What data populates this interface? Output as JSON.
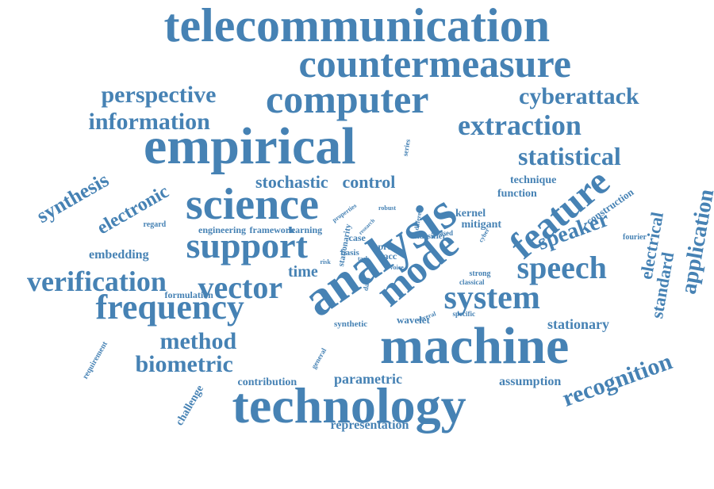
{
  "color": "#4682b4",
  "words": [
    {
      "text": "telecommunication",
      "weight": 10,
      "rotate": 0
    },
    {
      "text": "countermeasure",
      "weight": 9,
      "rotate": 0
    },
    {
      "text": "computer",
      "weight": 9,
      "rotate": 0
    },
    {
      "text": "perspective",
      "weight": 5,
      "rotate": 0
    },
    {
      "text": "cyberattack",
      "weight": 5,
      "rotate": 0
    },
    {
      "text": "information",
      "weight": 5,
      "rotate": 0
    },
    {
      "text": "extraction",
      "weight": 6,
      "rotate": 0
    },
    {
      "text": "empirical",
      "weight": 10,
      "rotate": 0
    },
    {
      "text": "statistical",
      "weight": 5,
      "rotate": 0
    },
    {
      "text": "analysis",
      "weight": 10,
      "rotate": -35
    },
    {
      "text": "science",
      "weight": 9,
      "rotate": 0
    },
    {
      "text": "stochastic",
      "weight": 4,
      "rotate": 0
    },
    {
      "text": "control",
      "weight": 4,
      "rotate": 0
    },
    {
      "text": "technique",
      "weight": 2,
      "rotate": 0
    },
    {
      "text": "function",
      "weight": 2,
      "rotate": 0
    },
    {
      "text": "feature",
      "weight": 8,
      "rotate": -40
    },
    {
      "text": "synthesis",
      "weight": 5,
      "rotate": -30
    },
    {
      "text": "electronic",
      "weight": 5,
      "rotate": -30
    },
    {
      "text": "support",
      "weight": 8,
      "rotate": 0
    },
    {
      "text": "speaker",
      "weight": 5,
      "rotate": -20
    },
    {
      "text": "construction",
      "weight": 2,
      "rotate": -35
    },
    {
      "text": "electrical",
      "weight": 4,
      "rotate": -80
    },
    {
      "text": "standard",
      "weight": 4,
      "rotate": -80
    },
    {
      "text": "application",
      "weight": 5,
      "rotate": -80
    },
    {
      "text": "speech",
      "weight": 7,
      "rotate": 0
    },
    {
      "text": "mode",
      "weight": 8,
      "rotate": -40
    },
    {
      "text": "system",
      "weight": 8,
      "rotate": 0
    },
    {
      "text": "verification",
      "weight": 6,
      "rotate": 0
    },
    {
      "text": "vector",
      "weight": 7,
      "rotate": 0
    },
    {
      "text": "time",
      "weight": 4,
      "rotate": 0
    },
    {
      "text": "embedding",
      "weight": 3,
      "rotate": 0
    },
    {
      "text": "frequency",
      "weight": 7,
      "rotate": 0
    },
    {
      "text": "formulation",
      "weight": 2,
      "rotate": 0
    },
    {
      "text": "method",
      "weight": 5,
      "rotate": 0
    },
    {
      "text": "machine",
      "weight": 10,
      "rotate": 0
    },
    {
      "text": "stationary",
      "weight": 3,
      "rotate": 0
    },
    {
      "text": "recognition",
      "weight": 6,
      "rotate": -20
    },
    {
      "text": "biometric",
      "weight": 5,
      "rotate": 0
    },
    {
      "text": "parametric",
      "weight": 3,
      "rotate": 0
    },
    {
      "text": "assumption",
      "weight": 3,
      "rotate": 0
    },
    {
      "text": "contribution",
      "weight": 3,
      "rotate": 0
    },
    {
      "text": "technology",
      "weight": 9,
      "rotate": 0
    },
    {
      "text": "requirement",
      "weight": 2,
      "rotate": -60
    },
    {
      "text": "challenge",
      "weight": 2,
      "rotate": -60
    },
    {
      "text": "representation",
      "weight": 3,
      "rotate": 0
    },
    {
      "text": "engineering",
      "weight": 10,
      "rotate": 0
    },
    {
      "text": "framework",
      "weight": 2,
      "rotate": 0
    },
    {
      "text": "learning",
      "weight": 2,
      "rotate": 0
    },
    {
      "text": "regard",
      "weight": 2,
      "rotate": 0
    },
    {
      "text": "properties",
      "weight": 2,
      "rotate": -35
    },
    {
      "text": "robust",
      "weight": 1,
      "rotate": 0
    },
    {
      "text": "series",
      "weight": 1,
      "rotate": -80
    },
    {
      "text": "different",
      "weight": 1,
      "rotate": -80
    },
    {
      "text": "kernel",
      "weight": 1,
      "rotate": 0
    },
    {
      "text": "mitigant",
      "weight": 2,
      "rotate": 0
    },
    {
      "text": "classifier",
      "weight": 3,
      "rotate": 0
    },
    {
      "text": "based",
      "weight": 2,
      "rotate": 0
    },
    {
      "text": "cyber",
      "weight": 1,
      "rotate": -60
    },
    {
      "text": "fourier",
      "weight": 1,
      "rotate": 0
    },
    {
      "text": "stationarity",
      "weight": 1,
      "rotate": -80
    },
    {
      "text": "basis",
      "weight": 2,
      "rotate": 0
    },
    {
      "text": "proc",
      "weight": 2,
      "rotate": 0
    },
    {
      "text": "acc",
      "weight": 2,
      "rotate": 0
    },
    {
      "text": "task",
      "weight": 2,
      "rotate": 0
    },
    {
      "text": "risk",
      "weight": 1,
      "rotate": 0
    },
    {
      "text": "voice",
      "weight": 1,
      "rotate": 0
    },
    {
      "text": "data",
      "weight": 1,
      "rotate": -80
    },
    {
      "text": "strong",
      "weight": 1,
      "rotate": 0
    },
    {
      "text": "classical",
      "weight": 2,
      "rotate": 0
    },
    {
      "text": "synthetic",
      "weight": 1,
      "rotate": 0
    },
    {
      "text": "wavelet",
      "weight": 1,
      "rotate": 0
    },
    {
      "text": "several",
      "weight": 2,
      "rotate": -20
    },
    {
      "text": "specific",
      "weight": 1,
      "rotate": 0
    },
    {
      "text": "general",
      "weight": 1,
      "rotate": -60
    },
    {
      "text": "research",
      "weight": 1,
      "rotate": -45
    },
    {
      "text": "case",
      "weight": 1,
      "rotate": 0
    }
  ]
}
